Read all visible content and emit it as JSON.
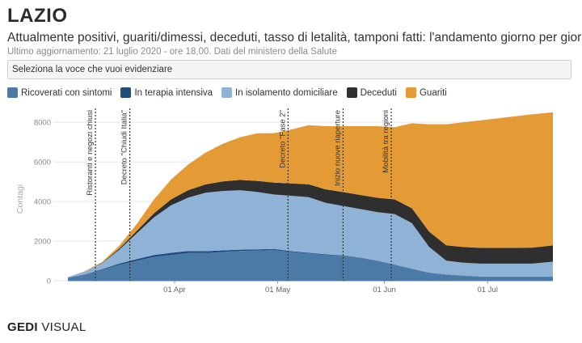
{
  "header": {
    "title": "LAZIO",
    "subtitle": "Attualmente positivi, guariti/dimessi, deceduti, tasso di letalità, tamponi fatti: l'andamento giorno per giorno",
    "updated": "Ultimo aggiornamento: 21 luglio 2020 - ore 18,00. Dati del ministero della Salute"
  },
  "selector": {
    "label": "Seleziona la voce che vuoi evidenziare"
  },
  "footer": {
    "brand_bold": "GEDI",
    "brand_rest": " VISUAL"
  },
  "chart_data": {
    "type": "area",
    "stacked": true,
    "ylabel": "Contagi",
    "ylim": [
      0,
      8700
    ],
    "yticks": [
      0,
      2000,
      4000,
      6000,
      8000
    ],
    "xticks": [
      {
        "day": 31,
        "label": "01 Apr"
      },
      {
        "day": 61,
        "label": "01 May"
      },
      {
        "day": 92,
        "label": "01 Jun"
      },
      {
        "day": 122,
        "label": "01 Jul"
      }
    ],
    "x": [
      0,
      5,
      10,
      15,
      20,
      25,
      30,
      35,
      40,
      45,
      50,
      55,
      60,
      65,
      70,
      75,
      80,
      85,
      90,
      95,
      100,
      105,
      110,
      115,
      120,
      125,
      130,
      135,
      141
    ],
    "x_origin_date": "2020-03-01",
    "series": [
      {
        "name": "Ricoverati con sintomi",
        "color": "#4a7aa5",
        "values": [
          150,
          300,
          550,
          800,
          1000,
          1200,
          1300,
          1400,
          1400,
          1450,
          1500,
          1520,
          1550,
          1450,
          1380,
          1300,
          1250,
          1150,
          1000,
          800,
          600,
          400,
          300,
          250,
          200,
          200,
          200,
          200,
          200
        ]
      },
      {
        "name": "In terapia intensiva",
        "color": "#1f4e7d",
        "values": [
          10,
          20,
          40,
          70,
          90,
          100,
          110,
          100,
          90,
          80,
          70,
          60,
          50,
          40,
          35,
          30,
          25,
          20,
          15,
          15,
          10,
          10,
          10,
          10,
          10,
          10,
          10,
          10,
          10
        ]
      },
      {
        "name": "In isolamento domiciliare",
        "color": "#8fb3d6",
        "values": [
          20,
          150,
          300,
          700,
          1300,
          1900,
          2400,
          2700,
          2950,
          3000,
          3000,
          2900,
          2750,
          2800,
          2800,
          2600,
          2500,
          2450,
          2450,
          2550,
          2300,
          1300,
          700,
          650,
          650,
          650,
          650,
          650,
          750
        ]
      },
      {
        "name": "Deceduti",
        "color": "#2f2f2f",
        "values": [
          0,
          5,
          20,
          60,
          120,
          200,
          300,
          370,
          420,
          480,
          520,
          560,
          600,
          620,
          650,
          680,
          700,
          710,
          720,
          740,
          750,
          770,
          780,
          790,
          800,
          800,
          800,
          810,
          820
        ]
      },
      {
        "name": "Guariti",
        "color": "#e59b35",
        "values": [
          0,
          10,
          40,
          150,
          350,
          700,
          1000,
          1300,
          1600,
          1900,
          2150,
          2400,
          2500,
          2730,
          2985,
          3190,
          3325,
          3470,
          3615,
          3645,
          4290,
          5420,
          6110,
          6300,
          6440,
          6540,
          6640,
          6730,
          6720
        ]
      }
    ],
    "annotations": [
      {
        "day": 8,
        "label": "Ristoranti e negozi chiusi",
        "color": "#333333"
      },
      {
        "day": 18,
        "label": "Decreto \"Chiudi Italia\"",
        "color": "#333333"
      },
      {
        "day": 64,
        "label": "Decreto \"Fase 2\"",
        "color": "#333333"
      },
      {
        "day": 80,
        "label": "Inizio nuove riaperture",
        "color": "#333333"
      },
      {
        "day": 94,
        "label": "Mobilità tra regioni",
        "color": "#333333"
      }
    ]
  }
}
